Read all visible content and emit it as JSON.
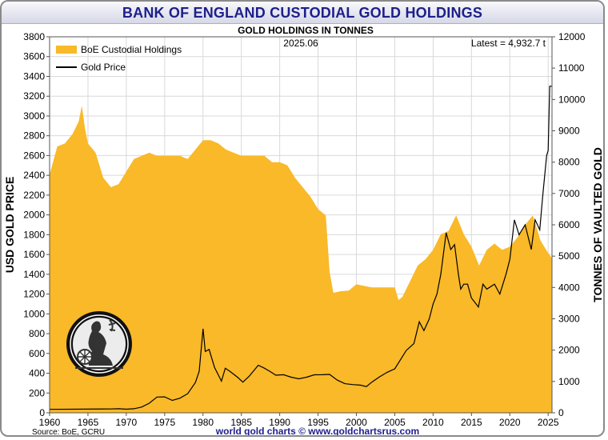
{
  "header": {
    "title": "BANK OF ENGLAND CUSTODIAL GOLD HOLDINGS"
  },
  "chart_data": {
    "type": "area",
    "title": "GOLD HOLDINGS IN TONNES",
    "date_label": "2025.06",
    "latest_label": "Latest = 4,932.7 t",
    "ylabel_left": "USD GOLD PRICE",
    "ylabel_right": "TONNES OF VAULTED GOLD",
    "ylim_left": [
      0,
      3800
    ],
    "ylim_right": [
      0,
      12000
    ],
    "xlim": [
      1960,
      2025.5
    ],
    "x_ticks": [
      "1960",
      "1965",
      "1970",
      "1975",
      "1980",
      "1985",
      "1990",
      "1995",
      "2000",
      "2005",
      "2010",
      "2015",
      "2020",
      "2025"
    ],
    "y_ticks_left": [
      "0",
      "200",
      "400",
      "600",
      "800",
      "1000",
      "1200",
      "1400",
      "1600",
      "1800",
      "2000",
      "2200",
      "2400",
      "2600",
      "2800",
      "3000",
      "3200",
      "3400",
      "3600",
      "3800"
    ],
    "y_ticks_right": [
      "0",
      "1000",
      "2000",
      "3000",
      "4000",
      "5000",
      "6000",
      "7000",
      "8000",
      "9000",
      "10000",
      "11000",
      "12000"
    ],
    "grid": true,
    "legend_position": "top-left",
    "colors": {
      "holdings": "#f9b928",
      "gold_price": "#000000",
      "grid": "#d9d9d9"
    },
    "series": [
      {
        "name": "BoE Custodial Holdings",
        "axis": "right",
        "kind": "area",
        "x": [
          1960,
          1961,
          1962,
          1963,
          1963.8,
          1964.2,
          1964.6,
          1965,
          1966,
          1967,
          1968,
          1969,
          1970,
          1971,
          1972,
          1973,
          1974,
          1975,
          1976,
          1977,
          1978,
          1979,
          1980,
          1981,
          1982,
          1983,
          1984,
          1985,
          1986,
          1987,
          1988,
          1989,
          1990,
          1991,
          1992,
          1993,
          1994,
          1995,
          1996,
          1996.5,
          1997,
          1998,
          1999,
          2000,
          2001,
          2002,
          2003,
          2004,
          2005,
          2005.5,
          2006,
          2007,
          2008,
          2009,
          2010,
          2011,
          2012,
          2013,
          2014,
          2015,
          2016,
          2017,
          2018,
          2019,
          2020,
          2021,
          2022,
          2023,
          2024,
          2025,
          2025.5
        ],
        "values": [
          7600,
          8500,
          8600,
          8900,
          9300,
          9800,
          9100,
          8600,
          8300,
          7500,
          7200,
          7300,
          7700,
          8100,
          8200,
          8300,
          8200,
          8200,
          8200,
          8200,
          8100,
          8400,
          8700,
          8700,
          8600,
          8400,
          8300,
          8200,
          8200,
          8200,
          8200,
          8000,
          8000,
          7900,
          7500,
          7200,
          6900,
          6500,
          6300,
          4500,
          3830,
          3880,
          3900,
          4100,
          4050,
          4000,
          4000,
          4000,
          4000,
          3600,
          3700,
          4200,
          4700,
          4900,
          5200,
          5700,
          5800,
          6300,
          5700,
          5300,
          4700,
          5200,
          5400,
          5200,
          5300,
          5600,
          6000,
          6300,
          5500,
          5100,
          4932.7
        ]
      },
      {
        "name": "Gold Price",
        "axis": "left",
        "kind": "line",
        "x": [
          1960,
          1968,
          1969,
          1970,
          1971,
          1972,
          1973,
          1974,
          1975,
          1976,
          1977,
          1978,
          1979,
          1979.5,
          1980.0,
          1980.3,
          1980.8,
          1981.5,
          1982.4,
          1982.9,
          1983.5,
          1984.5,
          1985.2,
          1986,
          1987.2,
          1987.9,
          1988.7,
          1989.5,
          1990.5,
          1991.5,
          1992.5,
          1993.5,
          1994.5,
          1995.5,
          1996.5,
          1997.5,
          1998.5,
          1999.6,
          2000.5,
          2001.3,
          2002,
          2003,
          2004,
          2005,
          2006.5,
          2007.5,
          2008.2,
          2008.8,
          2009.5,
          2010,
          2010.5,
          2011.0,
          2011.7,
          2012.3,
          2012.8,
          2013.3,
          2013.6,
          2014,
          2014.5,
          2015,
          2015.9,
          2016.5,
          2017,
          2018,
          2018.7,
          2019.5,
          2020,
          2020.6,
          2021.2,
          2022.0,
          2022.8,
          2023.3,
          2023.9,
          2024.3,
          2024.8,
          2025.0,
          2025.2,
          2025.5
        ],
        "values": [
          35,
          39,
          41,
          36,
          41,
          58,
          97,
          159,
          161,
          125,
          148,
          193,
          306,
          420,
          850,
          620,
          640,
          460,
          320,
          450,
          420,
          360,
          310,
          368,
          480,
          455,
          420,
          380,
          385,
          360,
          344,
          360,
          384,
          385,
          388,
          331,
          294,
          285,
          280,
          265,
          310,
          363,
          409,
          445,
          630,
          700,
          920,
          830,
          950,
          1100,
          1200,
          1400,
          1820,
          1650,
          1700,
          1400,
          1250,
          1300,
          1300,
          1160,
          1070,
          1300,
          1250,
          1300,
          1200,
          1400,
          1550,
          1950,
          1800,
          1900,
          1650,
          1950,
          1850,
          2200,
          2600,
          2650,
          3300,
          3300
        ]
      }
    ]
  },
  "footer": {
    "source": "Source: BoE, GCRU",
    "credit": "world gold charts © www.goldchartsrus.com"
  }
}
